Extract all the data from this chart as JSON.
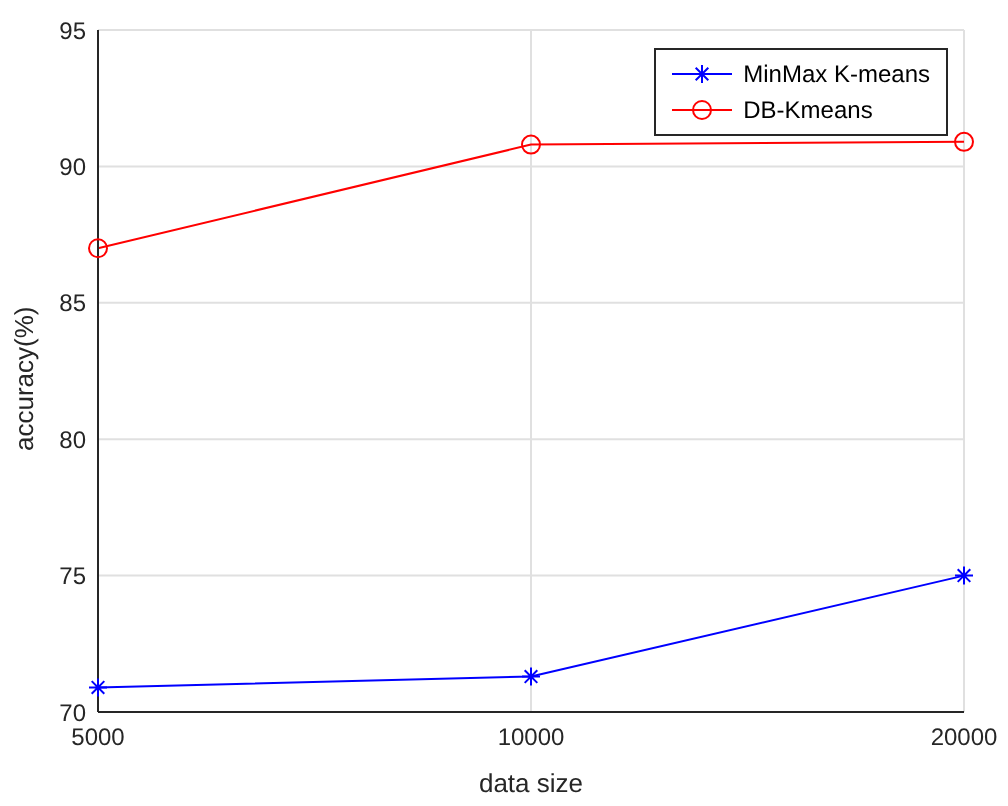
{
  "chart_data": {
    "type": "line",
    "xlabel": "data size",
    "ylabel": "accuracy(%)",
    "categories": [
      "5000",
      "10000",
      "20000"
    ],
    "series": [
      {
        "name": "MinMax K-means",
        "color": "#0000ff",
        "marker": "cross",
        "values": [
          70.9,
          71.3,
          75.0
        ]
      },
      {
        "name": "DB-Kmeans",
        "color": "#ff0000",
        "marker": "circle",
        "values": [
          87.0,
          90.8,
          90.9
        ]
      }
    ],
    "ylim": [
      70,
      95
    ],
    "yticks": [
      70,
      75,
      80,
      85,
      90,
      95
    ],
    "grid": true,
    "legend": "top right"
  }
}
